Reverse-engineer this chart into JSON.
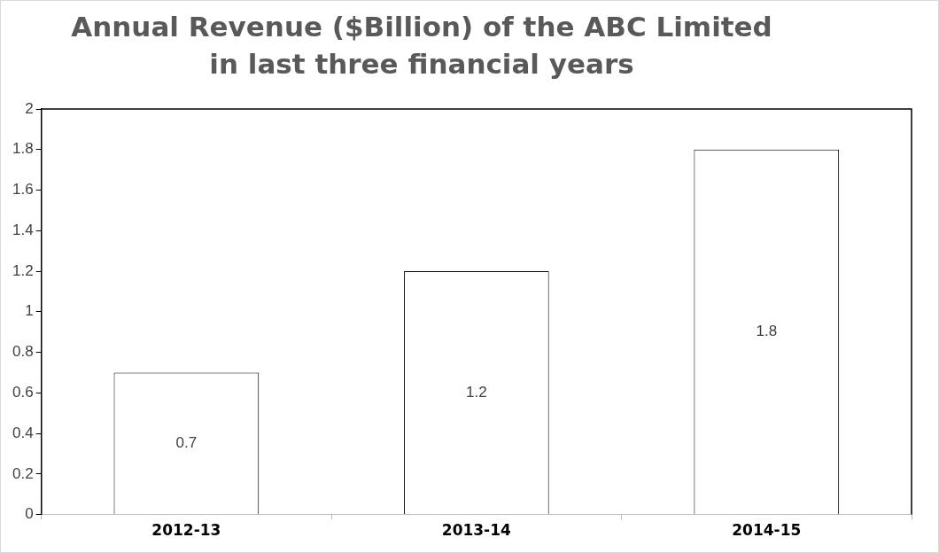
{
  "chart_data": {
    "type": "bar",
    "title": "Annual Revenue ($Billion) of the ABC Limited in last three financial years",
    "categories": [
      "2012-13",
      "2013-14",
      "2014-15"
    ],
    "values": [
      0.7,
      1.2,
      1.8
    ],
    "color": "#ffffff",
    "ylim": [
      0,
      2
    ],
    "yticks": [
      0,
      0.2,
      0.4,
      0.6,
      0.8,
      1,
      1.2,
      1.4,
      1.6,
      1.8,
      2
    ],
    "grid": false,
    "data_labels": true
  }
}
